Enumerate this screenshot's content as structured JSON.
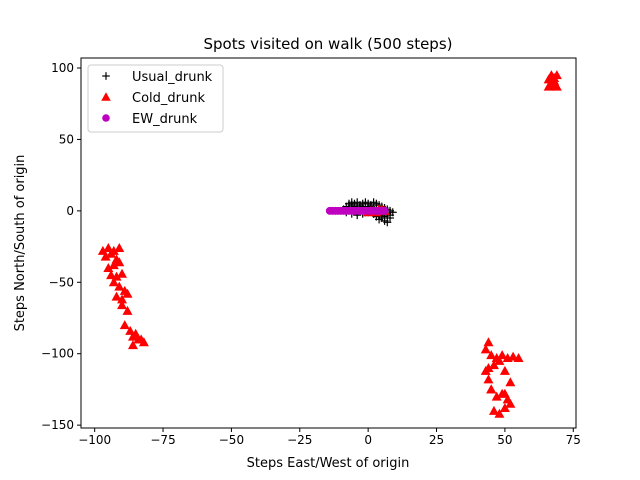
{
  "chart_data": {
    "type": "scatter",
    "title": "Spots visited on walk (500 steps)",
    "xlabel": "Steps East/West of origin",
    "ylabel": "Steps North/South of origin",
    "xlim": [
      -105,
      76
    ],
    "ylim": [
      -152,
      107
    ],
    "xticks": [
      -100,
      -75,
      -50,
      -25,
      0,
      25,
      50,
      75
    ],
    "yticks": [
      -150,
      -100,
      -50,
      0,
      50,
      100
    ],
    "grid": false,
    "legend_position": "upper-left",
    "series": [
      {
        "name": "Usual_drunk",
        "marker": "plus",
        "color": "#000000",
        "x": [
          -9,
          -8,
          -7,
          -6,
          -5,
          -4,
          -3,
          -2,
          -1,
          0,
          1,
          2,
          3,
          4,
          5,
          6,
          7,
          8,
          9,
          -8,
          -6,
          -4,
          -2,
          0,
          2,
          4,
          6,
          8,
          -7,
          -5,
          -3,
          -1,
          1,
          3,
          5,
          7,
          -6,
          -3,
          0,
          3,
          6,
          -4,
          -1,
          2,
          5,
          4,
          6,
          8,
          7,
          5,
          -2,
          1,
          -5,
          3
        ],
        "y": [
          1,
          3,
          5,
          6,
          5,
          6,
          4,
          5,
          6,
          5,
          4,
          6,
          5,
          4,
          3,
          2,
          1,
          0,
          -1,
          -1,
          -2,
          -1,
          -2,
          -1,
          -2,
          -3,
          -4,
          -3,
          2,
          3,
          2,
          3,
          2,
          1,
          0,
          -2,
          4,
          1,
          1,
          -1,
          -1,
          -3,
          -1,
          -2,
          -3,
          -6,
          -7,
          -5,
          -8,
          -5,
          3,
          3,
          0,
          -4
        ]
      },
      {
        "name": "Cold_drunk",
        "marker": "triangle",
        "color": "#ff0000",
        "x": [
          66,
          67,
          68,
          69,
          66,
          68,
          67,
          69,
          68,
          -97,
          -95,
          -93,
          -91,
          -96,
          -94,
          -92,
          -95,
          -93,
          -91,
          -94,
          -92,
          -90,
          -93,
          -91,
          -89,
          -92,
          -90,
          -88,
          -90,
          -88,
          -86,
          -84,
          -82,
          -89,
          -87,
          -85,
          -83,
          -86,
          44,
          43,
          45,
          47,
          49,
          51,
          53,
          55,
          44,
          46,
          48,
          50,
          52,
          45,
          47,
          49,
          51,
          50,
          52,
          46,
          48,
          50,
          43,
          44,
          45,
          0,
          2,
          4,
          6,
          1,
          3,
          5
        ],
        "y": [
          87,
          90,
          93,
          95,
          92,
          88,
          95,
          87,
          91,
          -28,
          -26,
          -28,
          -26,
          -32,
          -30,
          -34,
          -40,
          -38,
          -36,
          -45,
          -46,
          -44,
          -50,
          -53,
          -56,
          -60,
          -62,
          -58,
          -66,
          -70,
          -88,
          -90,
          -92,
          -80,
          -84,
          -86,
          -90,
          -94,
          -92,
          -97,
          -101,
          -103,
          -101,
          -103,
          -102,
          -103,
          -110,
          -108,
          -105,
          -112,
          -120,
          -125,
          -130,
          -128,
          -132,
          -138,
          -135,
          -140,
          -142,
          -128,
          -112,
          -118,
          -125,
          -1,
          0,
          1,
          0,
          0,
          -1,
          1
        ]
      },
      {
        "name": "EW_drunk",
        "marker": "circle",
        "color": "#bf00bf",
        "x": [
          -14,
          -13,
          -12,
          -11,
          -10,
          -9,
          -8,
          -7,
          -6,
          -5,
          -4,
          -3,
          -2,
          -1,
          0,
          1,
          2,
          3,
          4,
          5,
          6
        ],
        "y": [
          0,
          0,
          0,
          0,
          0,
          0,
          0,
          0,
          0,
          0,
          0,
          0,
          0,
          0,
          0,
          0,
          0,
          0,
          0,
          0,
          0
        ]
      }
    ]
  }
}
